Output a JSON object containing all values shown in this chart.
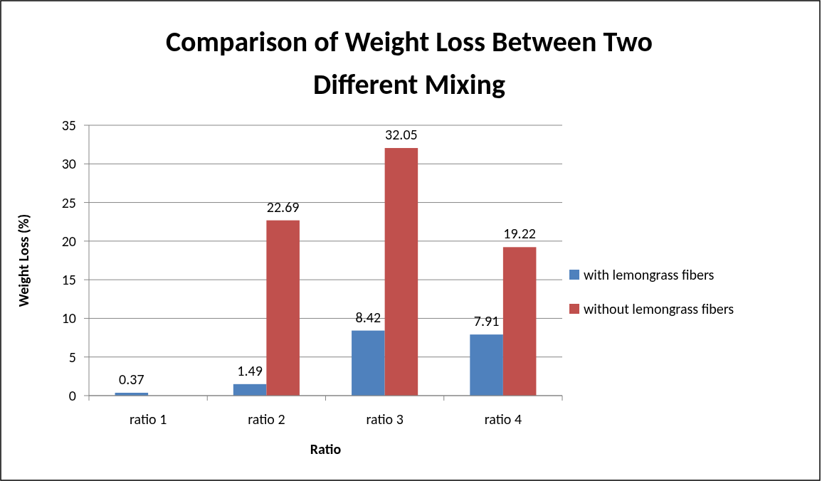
{
  "chart_data": {
    "type": "bar",
    "title": "Comparison of Weight Loss Between Two Different Mixing",
    "xlabel": "Ratio",
    "ylabel": "Weight Loss (%)",
    "categories": [
      "ratio 1",
      "ratio 2",
      "ratio 3",
      "ratio 4"
    ],
    "series": [
      {
        "name": "with lemongrass fibers",
        "color": "#4f81bd",
        "values": [
          0.37,
          1.49,
          8.42,
          7.91
        ]
      },
      {
        "name": "without lemongrass fibers",
        "color": "#c0504d",
        "values": [
          null,
          22.69,
          32.05,
          19.22
        ]
      }
    ],
    "ylim": [
      0,
      35
    ],
    "yticks": [
      0,
      5,
      10,
      15,
      20,
      25,
      30,
      35
    ],
    "grid": "y",
    "legend": "right",
    "data_labels": true
  }
}
